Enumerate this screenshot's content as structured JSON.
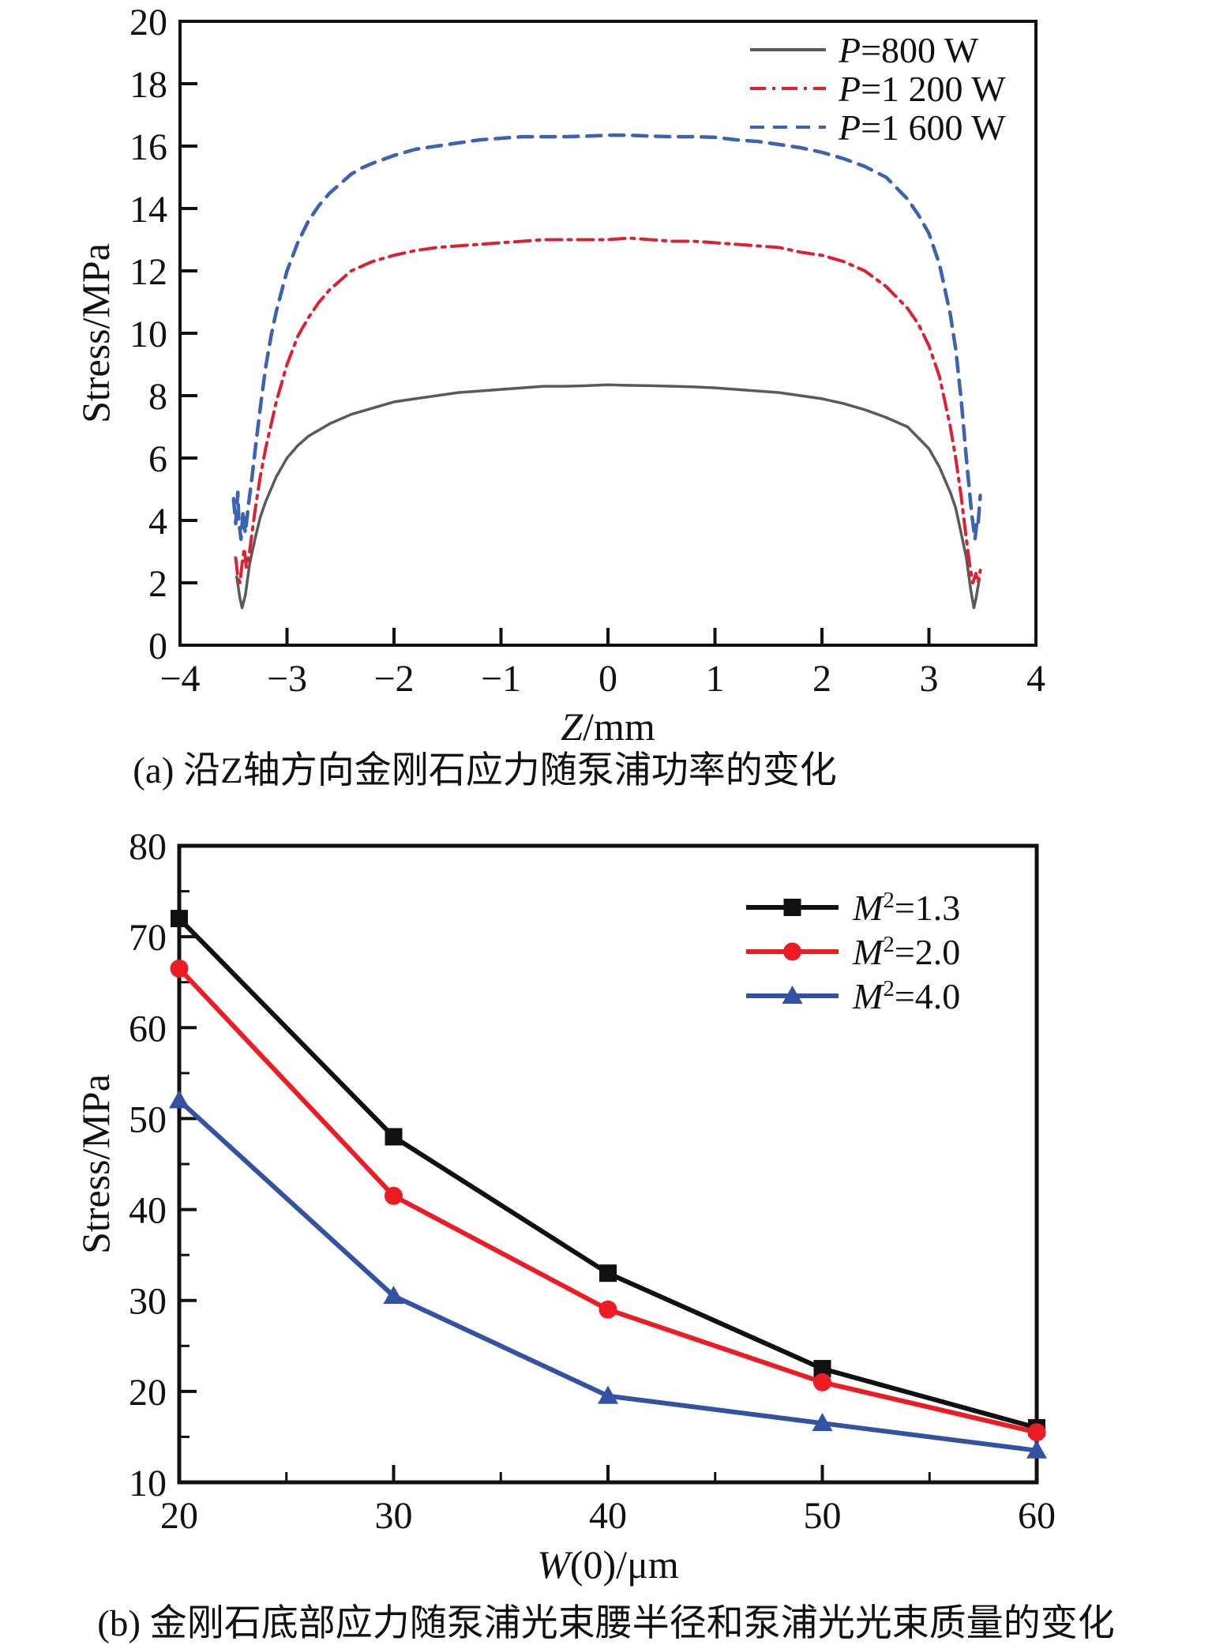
{
  "figure": {
    "background": "#ffffff",
    "text_color": "#111111"
  },
  "chart_data": [
    {
      "key": "a",
      "type": "line",
      "caption": "(a) 沿Z轴方向金刚石应力随泵浦功率的变化",
      "ylabel": "Stress/MPa",
      "xlabel": "Z/mm",
      "xlabel_parts": [
        {
          "t": "Z",
          "i": 1
        },
        {
          "t": "/mm"
        }
      ],
      "xlim": [
        -4,
        4
      ],
      "ylim": [
        0,
        20
      ],
      "grid": false,
      "legend_position": "top-right-inside",
      "frame_color": "#111111",
      "xticks": [
        {
          "v": -4,
          "l": "−4"
        },
        {
          "v": -3,
          "l": "−3"
        },
        {
          "v": -2,
          "l": "−2"
        },
        {
          "v": -1,
          "l": "−1"
        },
        {
          "v": 0,
          "l": "0"
        },
        {
          "v": 1,
          "l": "1"
        },
        {
          "v": 2,
          "l": "2"
        },
        {
          "v": 3,
          "l": "3"
        },
        {
          "v": 4,
          "l": "4"
        }
      ],
      "yticks": [
        {
          "v": 0,
          "l": "0"
        },
        {
          "v": 2,
          "l": "2"
        },
        {
          "v": 4,
          "l": "4"
        },
        {
          "v": 6,
          "l": "6"
        },
        {
          "v": 8,
          "l": "8"
        },
        {
          "v": 10,
          "l": "10"
        },
        {
          "v": 12,
          "l": "12"
        },
        {
          "v": 14,
          "l": "14"
        },
        {
          "v": 16,
          "l": "16"
        },
        {
          "v": 18,
          "l": "18"
        },
        {
          "v": 20,
          "l": "20"
        }
      ],
      "x_minor": [],
      "y_minor": [],
      "series": [
        {
          "name": "P=800 W",
          "label_parts": [
            {
              "t": "P",
              "i": 1
            },
            {
              "t": "=800 W"
            }
          ],
          "color": "#5a5a5a",
          "style": "solid",
          "width": 3.5,
          "marker": "none",
          "points": [
            [
              -3.47,
              2.2
            ],
            [
              -3.44,
              1.5
            ],
            [
              -3.42,
              1.2
            ],
            [
              -3.39,
              1.6
            ],
            [
              -3.35,
              2.6
            ],
            [
              -3.3,
              3.4
            ],
            [
              -3.25,
              4.1
            ],
            [
              -3.2,
              4.6
            ],
            [
              -3.1,
              5.4
            ],
            [
              -3.0,
              6.0
            ],
            [
              -2.9,
              6.4
            ],
            [
              -2.8,
              6.7
            ],
            [
              -2.6,
              7.1
            ],
            [
              -2.4,
              7.4
            ],
            [
              -2.2,
              7.6
            ],
            [
              -2.0,
              7.8
            ],
            [
              -1.8,
              7.9
            ],
            [
              -1.6,
              8.0
            ],
            [
              -1.4,
              8.1
            ],
            [
              -1.2,
              8.15
            ],
            [
              -1.0,
              8.2
            ],
            [
              -0.8,
              8.25
            ],
            [
              -0.6,
              8.3
            ],
            [
              -0.4,
              8.3
            ],
            [
              -0.2,
              8.32
            ],
            [
              0,
              8.35
            ],
            [
              0.2,
              8.33
            ],
            [
              0.4,
              8.32
            ],
            [
              0.6,
              8.3
            ],
            [
              0.8,
              8.28
            ],
            [
              1.0,
              8.25
            ],
            [
              1.2,
              8.2
            ],
            [
              1.4,
              8.15
            ],
            [
              1.6,
              8.1
            ],
            [
              1.8,
              8.0
            ],
            [
              2.0,
              7.9
            ],
            [
              2.2,
              7.75
            ],
            [
              2.4,
              7.55
            ],
            [
              2.6,
              7.3
            ],
            [
              2.8,
              7.0
            ],
            [
              3.0,
              6.3
            ],
            [
              3.1,
              5.7
            ],
            [
              3.2,
              4.9
            ],
            [
              3.25,
              4.4
            ],
            [
              3.3,
              3.6
            ],
            [
              3.35,
              2.8
            ],
            [
              3.39,
              1.8
            ],
            [
              3.42,
              1.2
            ],
            [
              3.44,
              1.5
            ],
            [
              3.47,
              2.1
            ]
          ]
        },
        {
          "name": "P=1 200 W",
          "label_parts": [
            {
              "t": "P",
              "i": 1
            },
            {
              "t": "=1 200 W"
            }
          ],
          "color": "#de2132",
          "style": "dashdot",
          "width": 4,
          "marker": "none",
          "points": [
            [
              -3.48,
              2.8
            ],
            [
              -3.46,
              2.2
            ],
            [
              -3.44,
              2.0
            ],
            [
              -3.42,
              2.6
            ],
            [
              -3.4,
              3.1
            ],
            [
              -3.38,
              2.5
            ],
            [
              -3.35,
              3.0
            ],
            [
              -3.3,
              4.3
            ],
            [
              -3.25,
              5.4
            ],
            [
              -3.2,
              6.3
            ],
            [
              -3.1,
              7.8
            ],
            [
              -3.0,
              9.0
            ],
            [
              -2.9,
              9.9
            ],
            [
              -2.8,
              10.5
            ],
            [
              -2.7,
              11.0
            ],
            [
              -2.6,
              11.4
            ],
            [
              -2.5,
              11.7
            ],
            [
              -2.4,
              12.0
            ],
            [
              -2.2,
              12.3
            ],
            [
              -2.0,
              12.5
            ],
            [
              -1.8,
              12.65
            ],
            [
              -1.6,
              12.75
            ],
            [
              -1.4,
              12.8
            ],
            [
              -1.2,
              12.85
            ],
            [
              -1.0,
              12.9
            ],
            [
              -0.8,
              12.95
            ],
            [
              -0.6,
              13.0
            ],
            [
              -0.4,
              13.0
            ],
            [
              -0.2,
              13.0
            ],
            [
              0,
              13.0
            ],
            [
              0.2,
              13.05
            ],
            [
              0.4,
              13.0
            ],
            [
              0.6,
              12.95
            ],
            [
              0.8,
              12.95
            ],
            [
              1.0,
              12.9
            ],
            [
              1.2,
              12.85
            ],
            [
              1.4,
              12.8
            ],
            [
              1.6,
              12.75
            ],
            [
              1.8,
              12.6
            ],
            [
              2.0,
              12.5
            ],
            [
              2.2,
              12.3
            ],
            [
              2.4,
              12.0
            ],
            [
              2.6,
              11.5
            ],
            [
              2.8,
              10.8
            ],
            [
              2.9,
              10.3
            ],
            [
              3.0,
              9.6
            ],
            [
              3.1,
              8.6
            ],
            [
              3.2,
              7.0
            ],
            [
              3.25,
              6.0
            ],
            [
              3.3,
              4.8
            ],
            [
              3.35,
              3.4
            ],
            [
              3.38,
              2.6
            ],
            [
              3.41,
              2.0
            ],
            [
              3.44,
              2.3
            ],
            [
              3.46,
              2.0
            ],
            [
              3.48,
              2.4
            ]
          ]
        },
        {
          "name": "P=1 600 W",
          "label_parts": [
            {
              "t": "P",
              "i": 1
            },
            {
              "t": "=1 600 W"
            }
          ],
          "color": "#3c63b1",
          "style": "dashed",
          "width": 4.5,
          "marker": "none",
          "points": [
            [
              -3.5,
              4.7
            ],
            [
              -3.48,
              3.9
            ],
            [
              -3.46,
              4.9
            ],
            [
              -3.45,
              4.0
            ],
            [
              -3.43,
              3.4
            ],
            [
              -3.41,
              4.3
            ],
            [
              -3.39,
              3.6
            ],
            [
              -3.36,
              4.5
            ],
            [
              -3.33,
              5.3
            ],
            [
              -3.3,
              6.2
            ],
            [
              -3.25,
              7.6
            ],
            [
              -3.2,
              8.9
            ],
            [
              -3.15,
              9.9
            ],
            [
              -3.1,
              10.7
            ],
            [
              -3.0,
              12.0
            ],
            [
              -2.9,
              12.9
            ],
            [
              -2.8,
              13.6
            ],
            [
              -2.7,
              14.1
            ],
            [
              -2.6,
              14.5
            ],
            [
              -2.5,
              14.8
            ],
            [
              -2.4,
              15.1
            ],
            [
              -2.3,
              15.3
            ],
            [
              -2.2,
              15.45
            ],
            [
              -2.0,
              15.7
            ],
            [
              -1.8,
              15.9
            ],
            [
              -1.6,
              16.0
            ],
            [
              -1.4,
              16.1
            ],
            [
              -1.2,
              16.2
            ],
            [
              -1.0,
              16.25
            ],
            [
              -0.8,
              16.3
            ],
            [
              -0.6,
              16.3
            ],
            [
              -0.4,
              16.3
            ],
            [
              -0.2,
              16.32
            ],
            [
              0,
              16.35
            ],
            [
              0.2,
              16.35
            ],
            [
              0.4,
              16.32
            ],
            [
              0.6,
              16.3
            ],
            [
              0.8,
              16.3
            ],
            [
              1.0,
              16.28
            ],
            [
              1.2,
              16.2
            ],
            [
              1.4,
              16.15
            ],
            [
              1.6,
              16.05
            ],
            [
              1.8,
              15.95
            ],
            [
              2.0,
              15.8
            ],
            [
              2.2,
              15.6
            ],
            [
              2.4,
              15.35
            ],
            [
              2.6,
              15.0
            ],
            [
              2.8,
              14.3
            ],
            [
              2.9,
              13.8
            ],
            [
              3.0,
              13.2
            ],
            [
              3.1,
              12.2
            ],
            [
              3.2,
              10.6
            ],
            [
              3.25,
              9.5
            ],
            [
              3.3,
              7.9
            ],
            [
              3.35,
              6.0
            ],
            [
              3.38,
              4.9
            ],
            [
              3.4,
              4.2
            ],
            [
              3.43,
              3.4
            ],
            [
              3.45,
              4.0
            ],
            [
              3.46,
              3.9
            ],
            [
              3.48,
              4.8
            ]
          ]
        }
      ]
    },
    {
      "key": "b",
      "type": "line",
      "caption": "(b) 金刚石底部应力随泵浦光束腰半径和泵浦光光束质量的变化",
      "ylabel": "Stress/MPa",
      "xlabel": "W(0)/μm",
      "xlabel_parts": [
        {
          "t": "W",
          "i": 1
        },
        {
          "t": "(0)/μm"
        }
      ],
      "xlim": [
        20,
        60
      ],
      "ylim": [
        10,
        80
      ],
      "grid": false,
      "legend_position": "top-right-inside",
      "frame_color": "#111111",
      "xticks": [
        {
          "v": 20,
          "l": "20"
        },
        {
          "v": 30,
          "l": "30"
        },
        {
          "v": 40,
          "l": "40"
        },
        {
          "v": 50,
          "l": "50"
        },
        {
          "v": 60,
          "l": "60"
        }
      ],
      "yticks": [
        {
          "v": 10,
          "l": "10"
        },
        {
          "v": 20,
          "l": "20"
        },
        {
          "v": 30,
          "l": "30"
        },
        {
          "v": 40,
          "l": "40"
        },
        {
          "v": 50,
          "l": "50"
        },
        {
          "v": 60,
          "l": "60"
        },
        {
          "v": 70,
          "l": "70"
        },
        {
          "v": 80,
          "l": "80"
        }
      ],
      "x_minor": [
        25,
        35,
        45,
        55
      ],
      "y_minor": [
        15,
        25,
        35,
        45,
        55,
        65,
        75
      ],
      "series": [
        {
          "name": "M²=1.3",
          "label_parts": [
            {
              "t": "M",
              "i": 1
            },
            {
              "t": "2",
              "sup": 1
            },
            {
              "t": "=1.3",
              "reset": 1
            }
          ],
          "color": "#111111",
          "style": "solid",
          "width": 6,
          "marker": "square",
          "points": [
            [
              20,
              72
            ],
            [
              30,
              48
            ],
            [
              40,
              33
            ],
            [
              50,
              22.5
            ],
            [
              60,
              16
            ]
          ]
        },
        {
          "name": "M²=2.0",
          "label_parts": [
            {
              "t": "M",
              "i": 1
            },
            {
              "t": "2",
              "sup": 1
            },
            {
              "t": "=2.0",
              "reset": 1
            }
          ],
          "color": "#ed1c24",
          "style": "solid",
          "width": 6,
          "marker": "circle",
          "points": [
            [
              20,
              66.5
            ],
            [
              30,
              41.5
            ],
            [
              40,
              29
            ],
            [
              50,
              21
            ],
            [
              60,
              15.5
            ]
          ]
        },
        {
          "name": "M²=4.0",
          "label_parts": [
            {
              "t": "M",
              "i": 1
            },
            {
              "t": "2",
              "sup": 1
            },
            {
              "t": "=4.0",
              "reset": 1
            }
          ],
          "color": "#3352a3",
          "style": "solid",
          "width": 6,
          "marker": "triangle",
          "points": [
            [
              20,
              52
            ],
            [
              30,
              30.5
            ],
            [
              40,
              19.5
            ],
            [
              50,
              16.5
            ],
            [
              60,
              13.5
            ]
          ]
        }
      ]
    }
  ]
}
